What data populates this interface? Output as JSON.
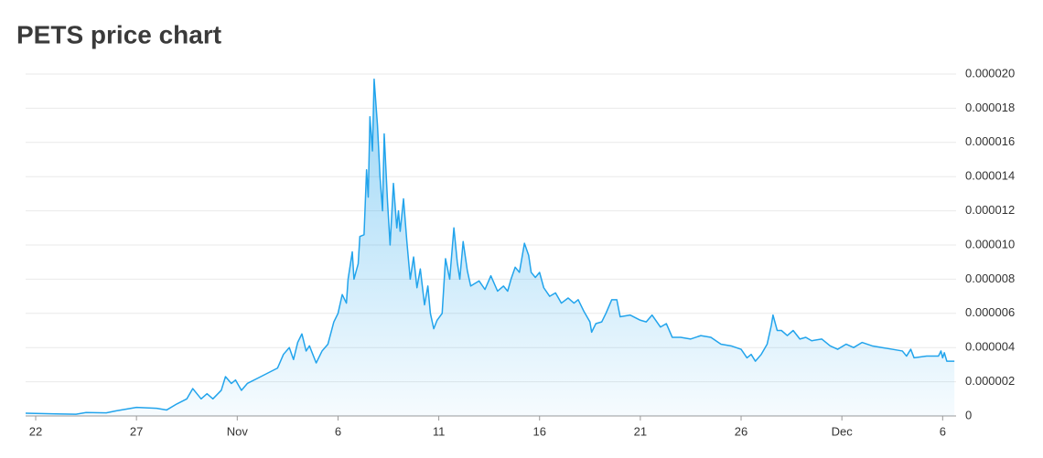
{
  "chart_data": {
    "type": "area",
    "title": "PETS price chart",
    "color": "#22a4ec",
    "grid": true,
    "x": [
      "10-21 12:00",
      "10-23 00:00",
      "10-24 00:00",
      "10-24 12:00",
      "10-25 12:00",
      "10-26 00:00",
      "10-27 00:00",
      "10-28 00:00",
      "10-28 12:00",
      "10-29 00:00",
      "10-29 12:00",
      "10-29 19:00",
      "10-30 05:00",
      "10-30 12:00",
      "10-30 19:00",
      "10-31 05:00",
      "10-31 10:00",
      "10-31 17:00",
      "10-31 22:00",
      "11-01 05:00",
      "11-01 12:00",
      "11-02 00:00",
      "11-02 12:00",
      "11-03 00:00",
      "11-03 07:00",
      "11-03 14:00",
      "11-03 19:00",
      "11-04 00:00",
      "11-04 05:00",
      "11-04 10:00",
      "11-04 14:00",
      "11-04 22:00",
      "11-05 05:00",
      "11-05 12:00",
      "11-05 19:00",
      "11-06 00:00",
      "11-06 05:00",
      "11-06 10:00",
      "11-06 12:00",
      "11-06 17:00",
      "11-06 19:00",
      "11-07 00:00",
      "11-07 02:00",
      "11-07 07:00",
      "11-07 10:00",
      "11-07 12:00",
      "11-07 14:00",
      "11-07 17:00",
      "11-07 19:00",
      "11-07 23:00",
      "11-08 02:00",
      "11-08 05:00",
      "11-08 07:00",
      "11-08 11:00",
      "11-08 14:00",
      "11-08 18:00",
      "11-08 22:00",
      "11-09 00:00",
      "11-09 02:00",
      "11-09 06:00",
      "11-09 10:00",
      "11-09 14:00",
      "11-09 18:00",
      "11-09 22:00",
      "11-10 02:00",
      "11-10 07:00",
      "11-10 11:00",
      "11-10 14:00",
      "11-10 18:00",
      "11-10 22:00",
      "11-11 04:00",
      "11-11 08:00",
      "11-11 13:00",
      "11-11 18:00",
      "11-11 22:00",
      "11-12 01:00",
      "11-12 05:00",
      "11-12 10:00",
      "11-12 14:00",
      "11-13 00:00",
      "11-13 07:00",
      "11-13 14:00",
      "11-13 22:00",
      "11-14 05:00",
      "11-14 10:00",
      "11-14 14:00",
      "11-14 19:00",
      "11-15 00:00",
      "11-15 06:00",
      "11-15 11:00",
      "11-15 14:00",
      "11-15 19:00",
      "11-16 00:00",
      "11-16 05:00",
      "11-16 12:00",
      "11-16 19:00",
      "11-17 02:00",
      "11-17 10:00",
      "11-17 17:00",
      "11-17 22:00",
      "11-18 05:00",
      "11-18 12:00",
      "11-18 14:00",
      "11-18 19:00",
      "11-19 02:00",
      "11-19 07:00",
      "11-19 14:00",
      "11-19 20:00",
      "11-20 00:00",
      "11-20 12:00",
      "11-21 00:00",
      "11-21 07:00",
      "11-21 14:00",
      "11-22 00:00",
      "11-22 07:00",
      "11-22 14:00",
      "11-23 00:00",
      "11-23 12:00",
      "11-24 00:00",
      "11-24 12:00",
      "11-25 00:00",
      "11-25 12:00",
      "11-26 00:00",
      "11-26 07:00",
      "11-26 12:00",
      "11-26 17:00",
      "11-27 00:00",
      "11-27 07:00",
      "11-27 12:00",
      "11-27 14:00",
      "11-27 19:00",
      "11-28 00:00",
      "11-28 07:00",
      "11-28 14:00",
      "11-28 22:00",
      "11-29 05:00",
      "11-29 12:00",
      "11-30 00:00",
      "11-30 10:00",
      "11-30 19:00",
      "12-01 05:00",
      "12-01 14:00",
      "12-02 00:00",
      "12-02 12:00",
      "12-03 00:00",
      "12-03 12:00",
      "12-04 00:00",
      "12-04 05:00",
      "12-04 10:00",
      "12-04 14:00",
      "12-05 05:00",
      "12-05 19:00",
      "12-05 22:00",
      "12-06 00:00",
      "12-06 02:00",
      "12-06 05:00",
      "12-06 14:00"
    ],
    "values": [
      1.6e-07,
      1.2e-07,
      1e-07,
      2e-07,
      1.8e-07,
      3e-07,
      5e-07,
      4.5e-07,
      3.5e-07,
      7e-07,
      1e-06,
      1.6e-06,
      1e-06,
      1.3e-06,
      1e-06,
      1.5e-06,
      2.3e-06,
      1.9e-06,
      2.1e-06,
      1.5e-06,
      1.9e-06,
      2.2e-06,
      2.5e-06,
      2.8e-06,
      3.6e-06,
      4e-06,
      3.3e-06,
      4.3e-06,
      4.8e-06,
      3.8e-06,
      4.1e-06,
      3.1e-06,
      3.8e-06,
      4.2e-06,
      5.5e-06,
      6e-06,
      7.1e-06,
      6.6e-06,
      8e-06,
      9.6e-06,
      8e-06,
      8.9e-06,
      1.05e-05,
      1.06e-05,
      1.44e-05,
      1.28e-05,
      1.75e-05,
      1.55e-05,
      1.97e-05,
      1.7e-05,
      1.4e-05,
      1.2e-05,
      1.65e-05,
      1.25e-05,
      1e-05,
      1.36e-05,
      1.1e-05,
      1.2e-05,
      1.08e-05,
      1.27e-05,
      1.02e-05,
      8e-06,
      9.3e-06,
      7.5e-06,
      8.6e-06,
      6.5e-06,
      7.6e-06,
      6e-06,
      5.1e-06,
      5.6e-06,
      6e-06,
      9.2e-06,
      8e-06,
      1.1e-05,
      9e-06,
      8e-06,
      1.02e-05,
      8.5e-06,
      7.6e-06,
      7.9e-06,
      7.4e-06,
      8.2e-06,
      7.3e-06,
      7.6e-06,
      7.3e-06,
      8e-06,
      8.7e-06,
      8.4e-06,
      1.01e-05,
      9.4e-06,
      8.4e-06,
      8.1e-06,
      8.4e-06,
      7.5e-06,
      7e-06,
      7.2e-06,
      6.6e-06,
      6.9e-06,
      6.6e-06,
      6.8e-06,
      6.1e-06,
      5.5e-06,
      4.9e-06,
      5.4e-06,
      5.5e-06,
      6e-06,
      6.8e-06,
      6.8e-06,
      5.8e-06,
      5.9e-06,
      5.6e-06,
      5.5e-06,
      5.9e-06,
      5.2e-06,
      5.4e-06,
      4.6e-06,
      4.6e-06,
      4.5e-06,
      4.7e-06,
      4.6e-06,
      4.2e-06,
      4.1e-06,
      3.9e-06,
      3.4e-06,
      3.6e-06,
      3.2e-06,
      3.6e-06,
      4.2e-06,
      5.3e-06,
      5.9e-06,
      5e-06,
      5e-06,
      4.7e-06,
      5e-06,
      4.5e-06,
      4.6e-06,
      4.4e-06,
      4.5e-06,
      4.1e-06,
      3.9e-06,
      4.2e-06,
      4e-06,
      4.3e-06,
      4.1e-06,
      4e-06,
      3.9e-06,
      3.8e-06,
      3.5e-06,
      3.9e-06,
      3.4e-06,
      3.5e-06,
      3.5e-06,
      3.8e-06,
      3.4e-06,
      3.7e-06,
      3.2e-06,
      3.2e-06
    ],
    "xlim": [
      "10-21 12:00",
      "12-06 16:00"
    ],
    "xticks": [
      {
        "value": "10-22 00:00",
        "label": "22"
      },
      {
        "value": "10-27 00:00",
        "label": "27"
      },
      {
        "value": "11-01 00:00",
        "label": "Nov"
      },
      {
        "value": "11-06 00:00",
        "label": "6"
      },
      {
        "value": "11-11 00:00",
        "label": "11"
      },
      {
        "value": "11-16 00:00",
        "label": "16"
      },
      {
        "value": "11-21 00:00",
        "label": "21"
      },
      {
        "value": "11-26 00:00",
        "label": "26"
      },
      {
        "value": "12-01 00:00",
        "label": "Dec"
      },
      {
        "value": "12-06 00:00",
        "label": "6"
      }
    ],
    "ylim": [
      0,
      2e-05
    ],
    "yticks": [
      0,
      2e-06,
      4e-06,
      6e-06,
      8e-06,
      {
        "value": 1e-05,
        "label": "0.000010"
      },
      1.2e-05,
      1.4e-05,
      1.6e-05,
      1.8e-05,
      {
        "value": 2e-05,
        "label": "0.000020"
      }
    ]
  }
}
